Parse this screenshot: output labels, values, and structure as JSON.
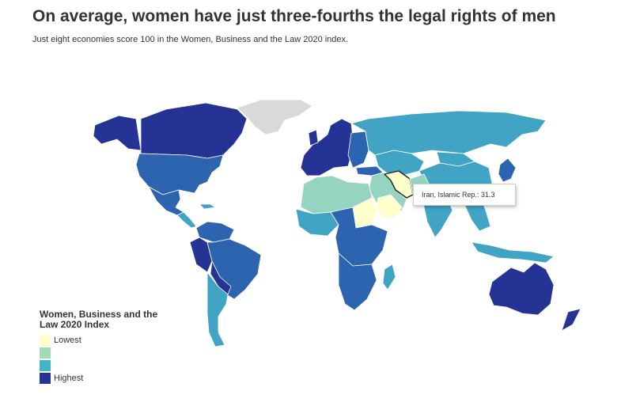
{
  "header": {
    "title": "On average, women have just three-fourths the legal rights of men",
    "subtitle": "Just eight economies score 100 in the Women, Business and the Law 2020 index."
  },
  "tooltip": {
    "text": "Iran, Islamic Rep.: 31.3",
    "country": "Iran, Islamic Rep.",
    "value": 31.3
  },
  "legend": {
    "title": "Women, Business and the Law 2020 Index",
    "items": [
      {
        "label": "Lowest",
        "color": "#ffffcc"
      },
      {
        "label": "",
        "color": "#a1dab4"
      },
      {
        "label": "",
        "color": "#41b6c4"
      },
      {
        "label": "Highest",
        "color": "#253494"
      }
    ]
  },
  "colors": {
    "highest": "#253494",
    "high": "#2c64b0",
    "mid": "#41a4c4",
    "low": "#94d4c0",
    "lowest": "#ffffcc",
    "nodata": "#d9d9d9"
  }
}
